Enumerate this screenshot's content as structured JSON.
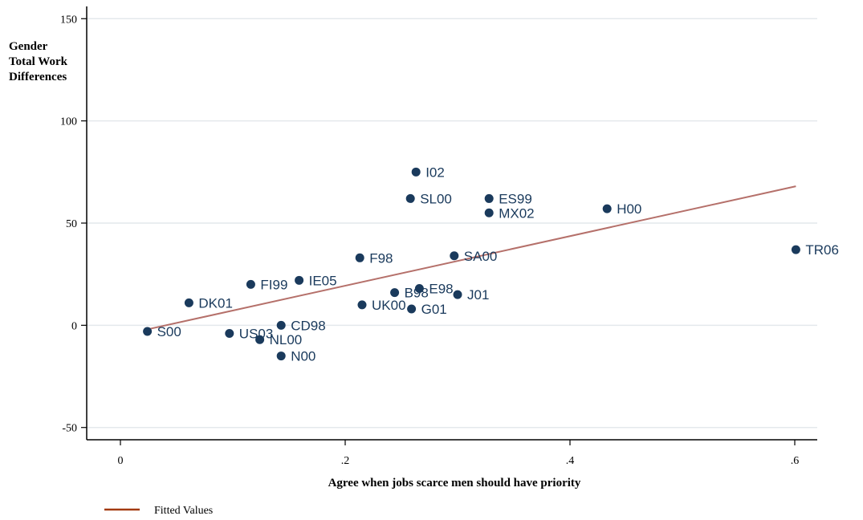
{
  "chart_data": {
    "type": "scatter",
    "title": "",
    "ylabel_lines": [
      "Gender",
      "Total Work",
      "Differences"
    ],
    "xlabel": "Agree when jobs scarce men should have priority",
    "xlim": [
      -0.03,
      0.62
    ],
    "ylim": [
      -56,
      156
    ],
    "x_ticks": [
      {
        "value": 0,
        "label": "0"
      },
      {
        "value": 0.2,
        "label": ".2"
      },
      {
        "value": 0.4,
        "label": ".4"
      },
      {
        "value": 0.6,
        "label": ".6"
      }
    ],
    "y_ticks": [
      {
        "value": -50,
        "label": "-50"
      },
      {
        "value": 0,
        "label": "0"
      },
      {
        "value": 50,
        "label": "50"
      },
      {
        "value": 100,
        "label": "100"
      },
      {
        "value": 150,
        "label": "150"
      }
    ],
    "grid": true,
    "point_color": "#1a3a5c",
    "line_color": "#b5706a",
    "legend_color": "#a33a10",
    "points": [
      {
        "label": "S00",
        "x": 0.024,
        "y": -3
      },
      {
        "label": "DK01",
        "x": 0.061,
        "y": 11
      },
      {
        "label": "US03",
        "x": 0.097,
        "y": -4
      },
      {
        "label": "FI99",
        "x": 0.116,
        "y": 20
      },
      {
        "label": "NL00",
        "x": 0.124,
        "y": -7
      },
      {
        "label": "CD98",
        "x": 0.143,
        "y": 0
      },
      {
        "label": "N00",
        "x": 0.143,
        "y": -15
      },
      {
        "label": "IE05",
        "x": 0.159,
        "y": 22
      },
      {
        "label": "F98",
        "x": 0.213,
        "y": 33
      },
      {
        "label": "UK00",
        "x": 0.215,
        "y": 10
      },
      {
        "label": "B98",
        "x": 0.244,
        "y": 16
      },
      {
        "label": "SL00",
        "x": 0.258,
        "y": 62
      },
      {
        "label": "G01",
        "x": 0.259,
        "y": 8
      },
      {
        "label": "I02",
        "x": 0.263,
        "y": 75
      },
      {
        "label": "E98",
        "x": 0.266,
        "y": 18
      },
      {
        "label": "SA00",
        "x": 0.297,
        "y": 34
      },
      {
        "label": "J01",
        "x": 0.3,
        "y": 15
      },
      {
        "label": "ES99",
        "x": 0.328,
        "y": 62
      },
      {
        "label": "MX02",
        "x": 0.328,
        "y": 55
      },
      {
        "label": "H00",
        "x": 0.433,
        "y": 57
      },
      {
        "label": "TR06",
        "x": 0.601,
        "y": 37
      }
    ],
    "fitted_line": {
      "x": [
        0.024,
        0.601
      ],
      "y": [
        -2,
        68
      ]
    },
    "legend": [
      {
        "label": "Fitted Values"
      }
    ]
  }
}
